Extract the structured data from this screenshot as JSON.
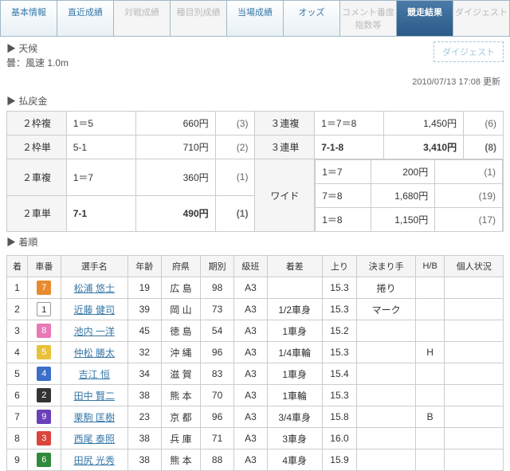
{
  "tabs": [
    {
      "label": "基本情報",
      "state": "normal"
    },
    {
      "label": "直近成績",
      "state": "normal"
    },
    {
      "label": "対戦成績",
      "state": "inactive"
    },
    {
      "label": "種目別成績",
      "state": "inactive"
    },
    {
      "label": "当場成績",
      "state": "normal"
    },
    {
      "label": "オッズ",
      "state": "normal"
    },
    {
      "label": "コメント番度指数等",
      "state": "inactive"
    },
    {
      "label": "競走結果",
      "state": "active"
    },
    {
      "label": "ダイジェスト",
      "state": "inactive"
    }
  ],
  "weather": {
    "line1": "▶ 天候",
    "line2": "曇：風速 1.0m"
  },
  "digest_btn": "ダイジェスト",
  "update_time": "2010/07/13 17:08 更新",
  "payout_header": "▶ 払戻金",
  "payouts_left": [
    {
      "type": "２枠複",
      "combo": "1＝5",
      "amount": "660円",
      "pop": "(3)",
      "bold": false
    },
    {
      "type": "２枠単",
      "combo": "5-1",
      "amount": "710円",
      "pop": "(2)",
      "bold": false
    },
    {
      "type": "２車複",
      "combo": "1＝7",
      "amount": "360円",
      "pop": "(1)",
      "bold": false
    },
    {
      "type": "２車単",
      "combo": "7-1",
      "amount": "490円",
      "pop": "(1)",
      "bold": true
    }
  ],
  "payouts_right_top": [
    {
      "type": "３連複",
      "combo": "1＝7＝8",
      "amount": "1,450円",
      "pop": "(6)",
      "bold": false
    },
    {
      "type": "３連単",
      "combo": "7-1-8",
      "amount": "3,410円",
      "pop": "(8)",
      "bold": true
    }
  ],
  "wide_label": "ワイド",
  "wide": [
    {
      "combo": "1＝7",
      "amount": "200円",
      "pop": "(1)"
    },
    {
      "combo": "7＝8",
      "amount": "1,680円",
      "pop": "(19)"
    },
    {
      "combo": "1＝8",
      "amount": "1,150円",
      "pop": "(17)"
    }
  ],
  "results_header": "▶ 着順",
  "cols": [
    "着",
    "車番",
    "選手名",
    "年齢",
    "府県",
    "期別",
    "級班",
    "着差",
    "上り",
    "決まり手",
    "H/B",
    "個人状況"
  ],
  "num_colors": {
    "1": {
      "bg": "#ffffff",
      "outline": true
    },
    "2": {
      "bg": "#333333"
    },
    "3": {
      "bg": "#d9453a"
    },
    "4": {
      "bg": "#3b6fc9"
    },
    "5": {
      "bg": "#e8c23b"
    },
    "6": {
      "bg": "#2f8a3c"
    },
    "7": {
      "bg": "#e88b2f"
    },
    "8": {
      "bg": "#e878b8"
    },
    "9": {
      "bg": "#6b3fb8"
    }
  },
  "rows": [
    {
      "rank": "1",
      "num": "7",
      "name": "松浦 悠士",
      "age": "19",
      "pref": "広 島",
      "term": "98",
      "cls": "A3",
      "diff": "",
      "up": "15.3",
      "win": "捲り",
      "hb": "",
      "stat": ""
    },
    {
      "rank": "2",
      "num": "1",
      "name": "近藤 健司",
      "age": "39",
      "pref": "岡 山",
      "term": "73",
      "cls": "A3",
      "diff": "1/2車身",
      "up": "15.3",
      "win": "マーク",
      "hb": "",
      "stat": ""
    },
    {
      "rank": "3",
      "num": "8",
      "name": "池内 一洋",
      "age": "45",
      "pref": "徳 島",
      "term": "54",
      "cls": "A3",
      "diff": "1車身",
      "up": "15.2",
      "win": "",
      "hb": "",
      "stat": ""
    },
    {
      "rank": "4",
      "num": "5",
      "name": "仲松 勝太",
      "age": "32",
      "pref": "沖 縄",
      "term": "96",
      "cls": "A3",
      "diff": "1/4車輪",
      "up": "15.3",
      "win": "",
      "hb": "H",
      "stat": ""
    },
    {
      "rank": "5",
      "num": "4",
      "name": "吉江 恒",
      "age": "34",
      "pref": "滋 賀",
      "term": "83",
      "cls": "A3",
      "diff": "1車身",
      "up": "15.4",
      "win": "",
      "hb": "",
      "stat": ""
    },
    {
      "rank": "6",
      "num": "2",
      "name": "田中 賢二",
      "age": "38",
      "pref": "熊 本",
      "term": "70",
      "cls": "A3",
      "diff": "1車輪",
      "up": "15.3",
      "win": "",
      "hb": "",
      "stat": ""
    },
    {
      "rank": "7",
      "num": "9",
      "name": "栗駒 匡樹",
      "age": "23",
      "pref": "京 都",
      "term": "96",
      "cls": "A3",
      "diff": "3/4車身",
      "up": "15.8",
      "win": "",
      "hb": "B",
      "stat": ""
    },
    {
      "rank": "8",
      "num": "3",
      "name": "西尾 泰照",
      "age": "38",
      "pref": "兵 庫",
      "term": "71",
      "cls": "A3",
      "diff": "3車身",
      "up": "16.0",
      "win": "",
      "hb": "",
      "stat": ""
    },
    {
      "rank": "9",
      "num": "6",
      "name": "田尻 光秀",
      "age": "38",
      "pref": "熊 本",
      "term": "88",
      "cls": "A3",
      "diff": "4車身",
      "up": "15.9",
      "win": "",
      "hb": "",
      "stat": ""
    }
  ]
}
